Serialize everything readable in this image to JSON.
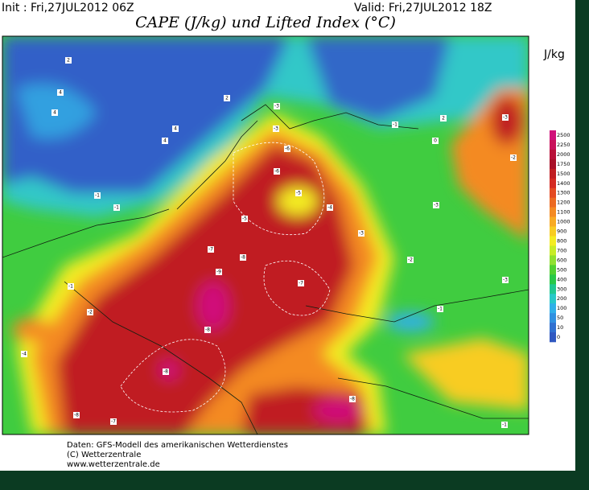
{
  "header": {
    "init": "Init : Fri,27JUL2012 06Z",
    "valid": "Valid: Fri,27JUL2012 18Z",
    "title": "CAPE (J/kg) und Lifted Index (°C)"
  },
  "legend": {
    "unit": "J/kg",
    "levels": [
      2500,
      2250,
      2000,
      1750,
      1500,
      1400,
      1300,
      1200,
      1100,
      1000,
      900,
      800,
      700,
      600,
      500,
      400,
      300,
      200,
      100,
      50,
      10,
      0
    ],
    "colors": [
      "#d0107a",
      "#c8105a",
      "#b81038",
      "#a81028",
      "#c01e22",
      "#d42a22",
      "#e44a22",
      "#ec6a22",
      "#f48a22",
      "#f8aa22",
      "#f8cc22",
      "#f4ec22",
      "#c8ec28",
      "#90e030",
      "#50d030",
      "#28c848",
      "#20c890",
      "#28c8c8",
      "#30b0e8",
      "#3090e0",
      "#3070d0",
      "#3058c0"
    ]
  },
  "map": {
    "labels": [
      "2",
      "4",
      "4",
      "2",
      "4",
      "4",
      "-1",
      "-1",
      "-3",
      "-3",
      "-6",
      "-6",
      "-5",
      "-7",
      "-8",
      "-5",
      "-4",
      "-3",
      "-3",
      "-1",
      "0",
      "2",
      "-3",
      "-2",
      "-7",
      "-9",
      "-8",
      "-8",
      "-8",
      "-7",
      "-8",
      "-4",
      "-1",
      "-1",
      "-3",
      "-2",
      "-1",
      "-2"
    ]
  },
  "footer": {
    "lines": [
      "Daten: GFS-Modell des amerikanischen Wetterdienstes",
      "(C) Wetterzentrale",
      "www.wetterzentrale.de"
    ]
  }
}
